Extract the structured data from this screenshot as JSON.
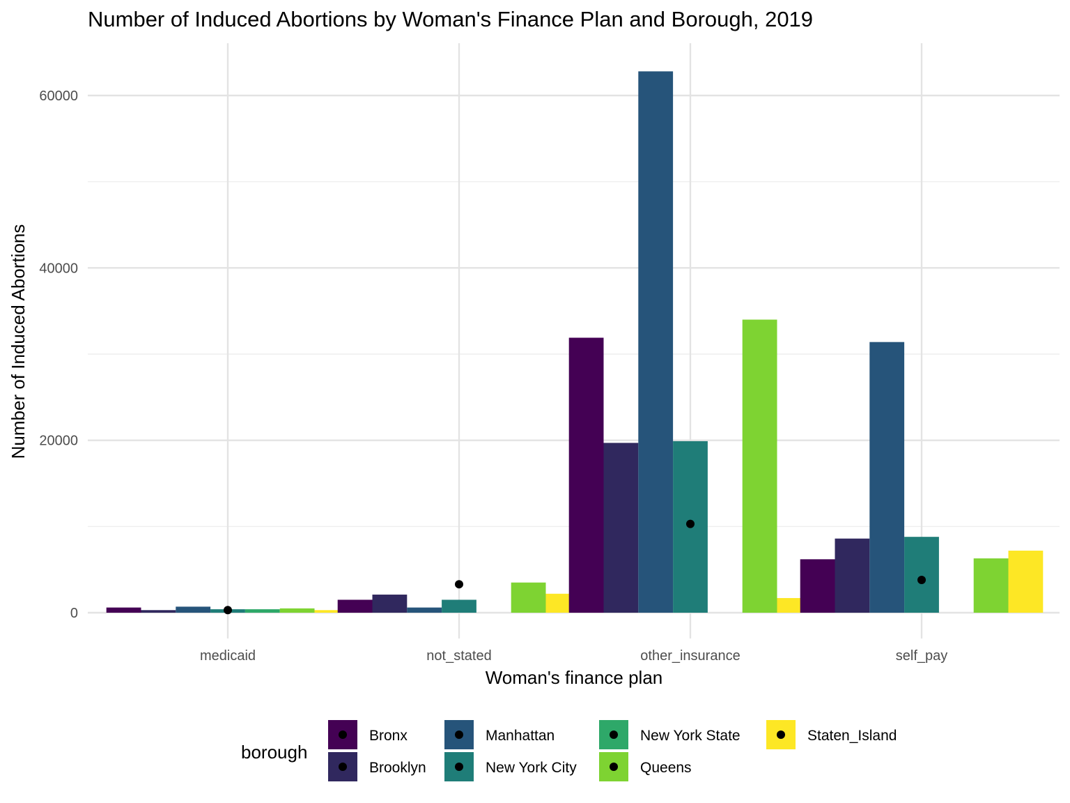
{
  "chart_data": {
    "type": "bar",
    "title": "Number of Induced Abortions by Woman's Finance Plan and Borough, 2019",
    "xlabel": "Woman's finance plan",
    "ylabel": "Number of Induced Abortions",
    "categories": [
      "medicaid",
      "not_stated",
      "other_insurance",
      "self_pay"
    ],
    "ylim": [
      0,
      66000
    ],
    "yticks": [
      0,
      20000,
      40000,
      60000
    ],
    "grid": true,
    "legend": {
      "title": "borough",
      "position": "bottom"
    },
    "series": [
      {
        "name": "Bronx",
        "color": "#440154",
        "values": [
          600,
          1500,
          31900,
          6200
        ]
      },
      {
        "name": "Brooklyn",
        "color": "#30285E",
        "values": [
          300,
          2100,
          19700,
          8600
        ]
      },
      {
        "name": "Manhattan",
        "color": "#26547A",
        "values": [
          700,
          600,
          62800,
          31400
        ]
      },
      {
        "name": "New York City",
        "color": "#1F7D78",
        "values": [
          400,
          1500,
          19900,
          8800
        ]
      },
      {
        "name": "New York State",
        "color": "#2EA869",
        "values": [
          400,
          0,
          0,
          0
        ]
      },
      {
        "name": "Queens",
        "color": "#7ED332",
        "values": [
          500,
          3500,
          34000,
          6300
        ]
      },
      {
        "name": "Staten_Island",
        "color": "#FDE725",
        "values": [
          300,
          2200,
          1700,
          7200
        ]
      }
    ],
    "points": {
      "color": "#000000",
      "values": [
        300,
        3300,
        10300,
        3800
      ]
    }
  }
}
